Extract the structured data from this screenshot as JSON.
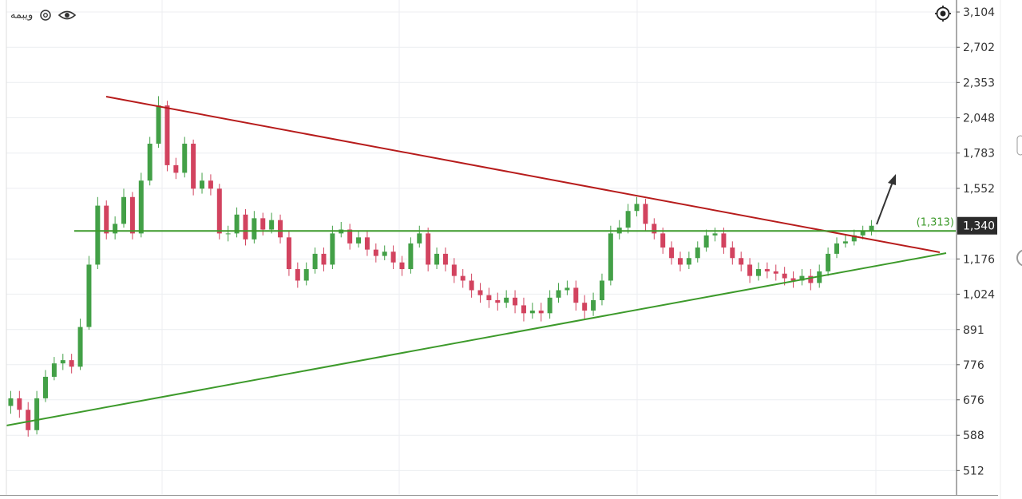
{
  "chart_data": {
    "type": "candlestick",
    "title": "ویبمه",
    "log_scale": true,
    "grid": true,
    "up_color": "#43a047",
    "down_color": "#d2435f",
    "ylim": [
      465,
      3254
    ],
    "yticks": [
      {
        "value": 3104,
        "label": "3,104"
      },
      {
        "value": 2702,
        "label": "2,702"
      },
      {
        "value": 2353,
        "label": "2,353"
      },
      {
        "value": 2048,
        "label": "2,048"
      },
      {
        "value": 1783,
        "label": "1,783"
      },
      {
        "value": 1552,
        "label": "1,552"
      },
      {
        "value": 1176,
        "label": "1,176"
      },
      {
        "value": 1024,
        "label": "1,024"
      },
      891,
      776,
      676,
      588,
      512
    ],
    "last_price": {
      "value": 1340,
      "label": "1,340"
    },
    "hline": {
      "value": 1313,
      "label": "(1,313)",
      "color": "#3d9a2b"
    },
    "candles": [
      [
        660,
        700,
        640,
        680
      ],
      [
        680,
        700,
        630,
        650
      ],
      [
        650,
        670,
        585,
        600
      ],
      [
        600,
        700,
        590,
        680
      ],
      [
        680,
        760,
        670,
        740
      ],
      [
        740,
        800,
        730,
        780
      ],
      [
        780,
        810,
        760,
        790
      ],
      [
        790,
        810,
        750,
        770
      ],
      [
        770,
        930,
        760,
        900
      ],
      [
        900,
        1190,
        890,
        1150
      ],
      [
        1150,
        1500,
        1130,
        1450
      ],
      [
        1450,
        1480,
        1270,
        1300
      ],
      [
        1300,
        1390,
        1270,
        1350
      ],
      [
        1350,
        1550,
        1330,
        1500
      ],
      [
        1500,
        1530,
        1270,
        1300
      ],
      [
        1300,
        1650,
        1280,
        1600
      ],
      [
        1600,
        1900,
        1570,
        1850
      ],
      [
        1850,
        2230,
        1820,
        2150
      ],
      [
        2150,
        2190,
        1660,
        1700
      ],
      [
        1700,
        1750,
        1610,
        1650
      ],
      [
        1650,
        1900,
        1620,
        1850
      ],
      [
        1850,
        1880,
        1510,
        1550
      ],
      [
        1550,
        1650,
        1520,
        1600
      ],
      [
        1600,
        1640,
        1510,
        1550
      ],
      [
        1550,
        1580,
        1270,
        1300
      ],
      [
        1300,
        1340,
        1260,
        1300
      ],
      [
        1300,
        1440,
        1280,
        1400
      ],
      [
        1400,
        1430,
        1240,
        1270
      ],
      [
        1270,
        1420,
        1250,
        1380
      ],
      [
        1380,
        1410,
        1290,
        1320
      ],
      [
        1320,
        1410,
        1300,
        1370
      ],
      [
        1370,
        1400,
        1250,
        1280
      ],
      [
        1280,
        1310,
        1100,
        1130
      ],
      [
        1130,
        1160,
        1050,
        1080
      ],
      [
        1080,
        1160,
        1060,
        1130
      ],
      [
        1130,
        1230,
        1110,
        1200
      ],
      [
        1200,
        1230,
        1120,
        1150
      ],
      [
        1150,
        1340,
        1130,
        1300
      ],
      [
        1300,
        1360,
        1280,
        1320
      ],
      [
        1320,
        1350,
        1220,
        1250
      ],
      [
        1250,
        1310,
        1230,
        1280
      ],
      [
        1280,
        1310,
        1190,
        1220
      ],
      [
        1220,
        1250,
        1160,
        1190
      ],
      [
        1190,
        1240,
        1170,
        1210
      ],
      [
        1210,
        1240,
        1130,
        1160
      ],
      [
        1160,
        1190,
        1100,
        1130
      ],
      [
        1130,
        1280,
        1110,
        1250
      ],
      [
        1250,
        1340,
        1230,
        1300
      ],
      [
        1300,
        1330,
        1120,
        1150
      ],
      [
        1150,
        1230,
        1130,
        1200
      ],
      [
        1200,
        1230,
        1120,
        1150
      ],
      [
        1150,
        1180,
        1070,
        1100
      ],
      [
        1100,
        1130,
        1050,
        1080
      ],
      [
        1080,
        1110,
        1010,
        1040
      ],
      [
        1040,
        1070,
        990,
        1020
      ],
      [
        1020,
        1050,
        970,
        1000
      ],
      [
        1000,
        1030,
        960,
        990
      ],
      [
        990,
        1040,
        970,
        1010
      ],
      [
        1010,
        1040,
        950,
        980
      ],
      [
        980,
        1010,
        920,
        950
      ],
      [
        950,
        990,
        930,
        960
      ],
      [
        960,
        990,
        920,
        950
      ],
      [
        950,
        1040,
        930,
        1010
      ],
      [
        1010,
        1070,
        990,
        1040
      ],
      [
        1040,
        1080,
        1020,
        1050
      ],
      [
        1050,
        1080,
        960,
        990
      ],
      [
        990,
        1020,
        930,
        960
      ],
      [
        960,
        1030,
        940,
        1000
      ],
      [
        1000,
        1110,
        980,
        1080
      ],
      [
        1080,
        1340,
        1060,
        1300
      ],
      [
        1300,
        1370,
        1270,
        1330
      ],
      [
        1330,
        1460,
        1300,
        1420
      ],
      [
        1420,
        1500,
        1390,
        1460
      ],
      [
        1460,
        1490,
        1310,
        1350
      ],
      [
        1350,
        1380,
        1270,
        1300
      ],
      [
        1300,
        1330,
        1200,
        1230
      ],
      [
        1230,
        1260,
        1150,
        1180
      ],
      [
        1180,
        1210,
        1120,
        1150
      ],
      [
        1150,
        1210,
        1130,
        1180
      ],
      [
        1180,
        1260,
        1160,
        1230
      ],
      [
        1230,
        1320,
        1210,
        1290
      ],
      [
        1290,
        1330,
        1260,
        1300
      ],
      [
        1300,
        1330,
        1200,
        1230
      ],
      [
        1230,
        1260,
        1150,
        1180
      ],
      [
        1180,
        1210,
        1120,
        1150
      ],
      [
        1150,
        1180,
        1070,
        1100
      ],
      [
        1100,
        1160,
        1080,
        1130
      ],
      [
        1130,
        1160,
        1090,
        1120
      ],
      [
        1120,
        1150,
        1080,
        1110
      ],
      [
        1110,
        1140,
        1060,
        1090
      ],
      [
        1090,
        1120,
        1050,
        1080
      ],
      [
        1080,
        1130,
        1060,
        1100
      ],
      [
        1100,
        1130,
        1040,
        1070
      ],
      [
        1070,
        1150,
        1050,
        1120
      ],
      [
        1120,
        1230,
        1100,
        1200
      ],
      [
        1200,
        1280,
        1180,
        1250
      ],
      [
        1250,
        1290,
        1230,
        1260
      ],
      [
        1260,
        1320,
        1240,
        1290
      ],
      [
        1290,
        1340,
        1270,
        1310
      ],
      [
        1310,
        1370,
        1290,
        1340
      ]
    ]
  }
}
